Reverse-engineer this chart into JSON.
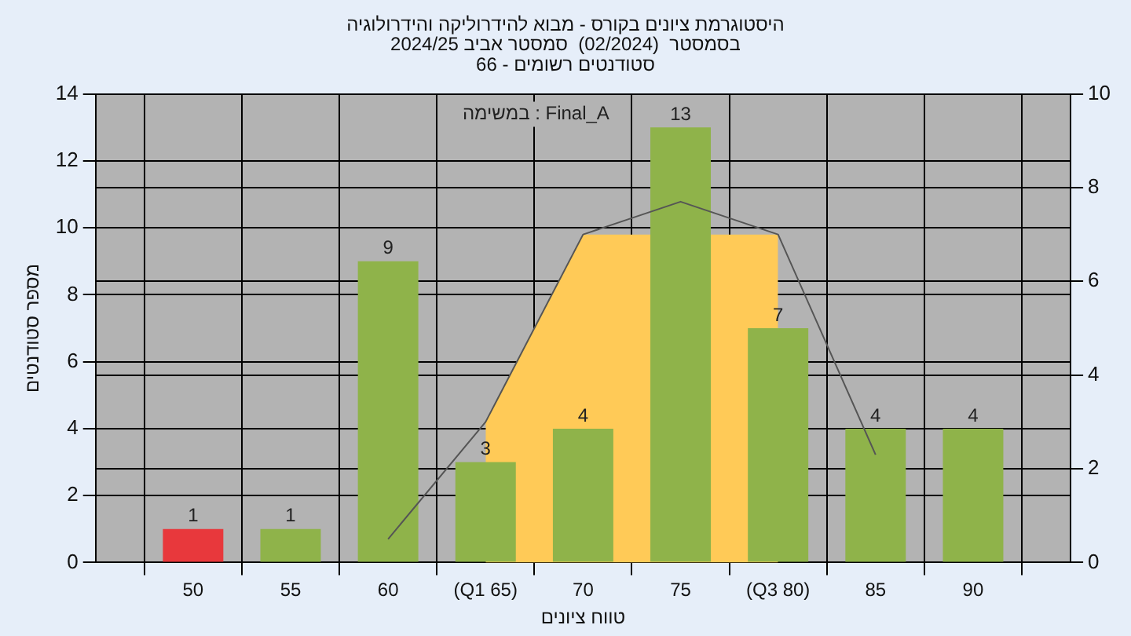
{
  "chart_data": {
    "type": "bar",
    "title": "היסטוגרמת ציונים בקורס - מבוא להידרוליקה והידרולוגיה\nבסמסטר  (02/2024)  סמסטר אביב 2024/25\nסטודנטים רשומים - 66",
    "xlabel": "טווח ציונים",
    "ylabel": "מספר סטודנטים",
    "categories": [
      null,
      "50",
      "55",
      "60",
      "(Q1 65)",
      "70",
      "75",
      "(Q3 80)",
      "85",
      "90",
      null
    ],
    "series": [
      {
        "type": "area",
        "axis": "y2",
        "color": "#ffca57",
        "values": [
          null,
          null,
          null,
          null,
          3,
          7,
          null,
          7,
          null,
          null,
          null
        ]
      },
      {
        "type": "line",
        "axis": "y2",
        "color": "#555555",
        "values": [
          null,
          null,
          null,
          0.5,
          3,
          7,
          7.7,
          7,
          2.3,
          null,
          null
        ]
      },
      {
        "value_labels": [
          null,
          "1",
          "1",
          "9",
          "3",
          "4",
          "13",
          "7",
          "4",
          "4",
          null
        ],
        "colors": [
          "#e8383c",
          "#e8383c",
          "#8fb34a",
          "#8fb34a",
          "#8fb34a",
          "#8fb34a",
          "#8fb34a",
          "#8fb34a",
          "#8fb34a",
          "#8fb34a",
          "#8fb34a"
        ],
        "values": [
          null,
          1,
          1,
          9,
          3,
          4,
          13,
          7,
          4,
          4,
          null
        ]
      }
    ],
    "ylim": [
      0,
      14
    ],
    "yticks": [
      0,
      2,
      4,
      6,
      8,
      10,
      12,
      14
    ],
    "y2lim": [
      0,
      10
    ],
    "y2ticks": [
      0,
      2,
      4,
      6,
      8,
      10
    ],
    "grid": true,
    "legend": false,
    "annotations": [
      "במשימה : Final_A"
    ]
  }
}
